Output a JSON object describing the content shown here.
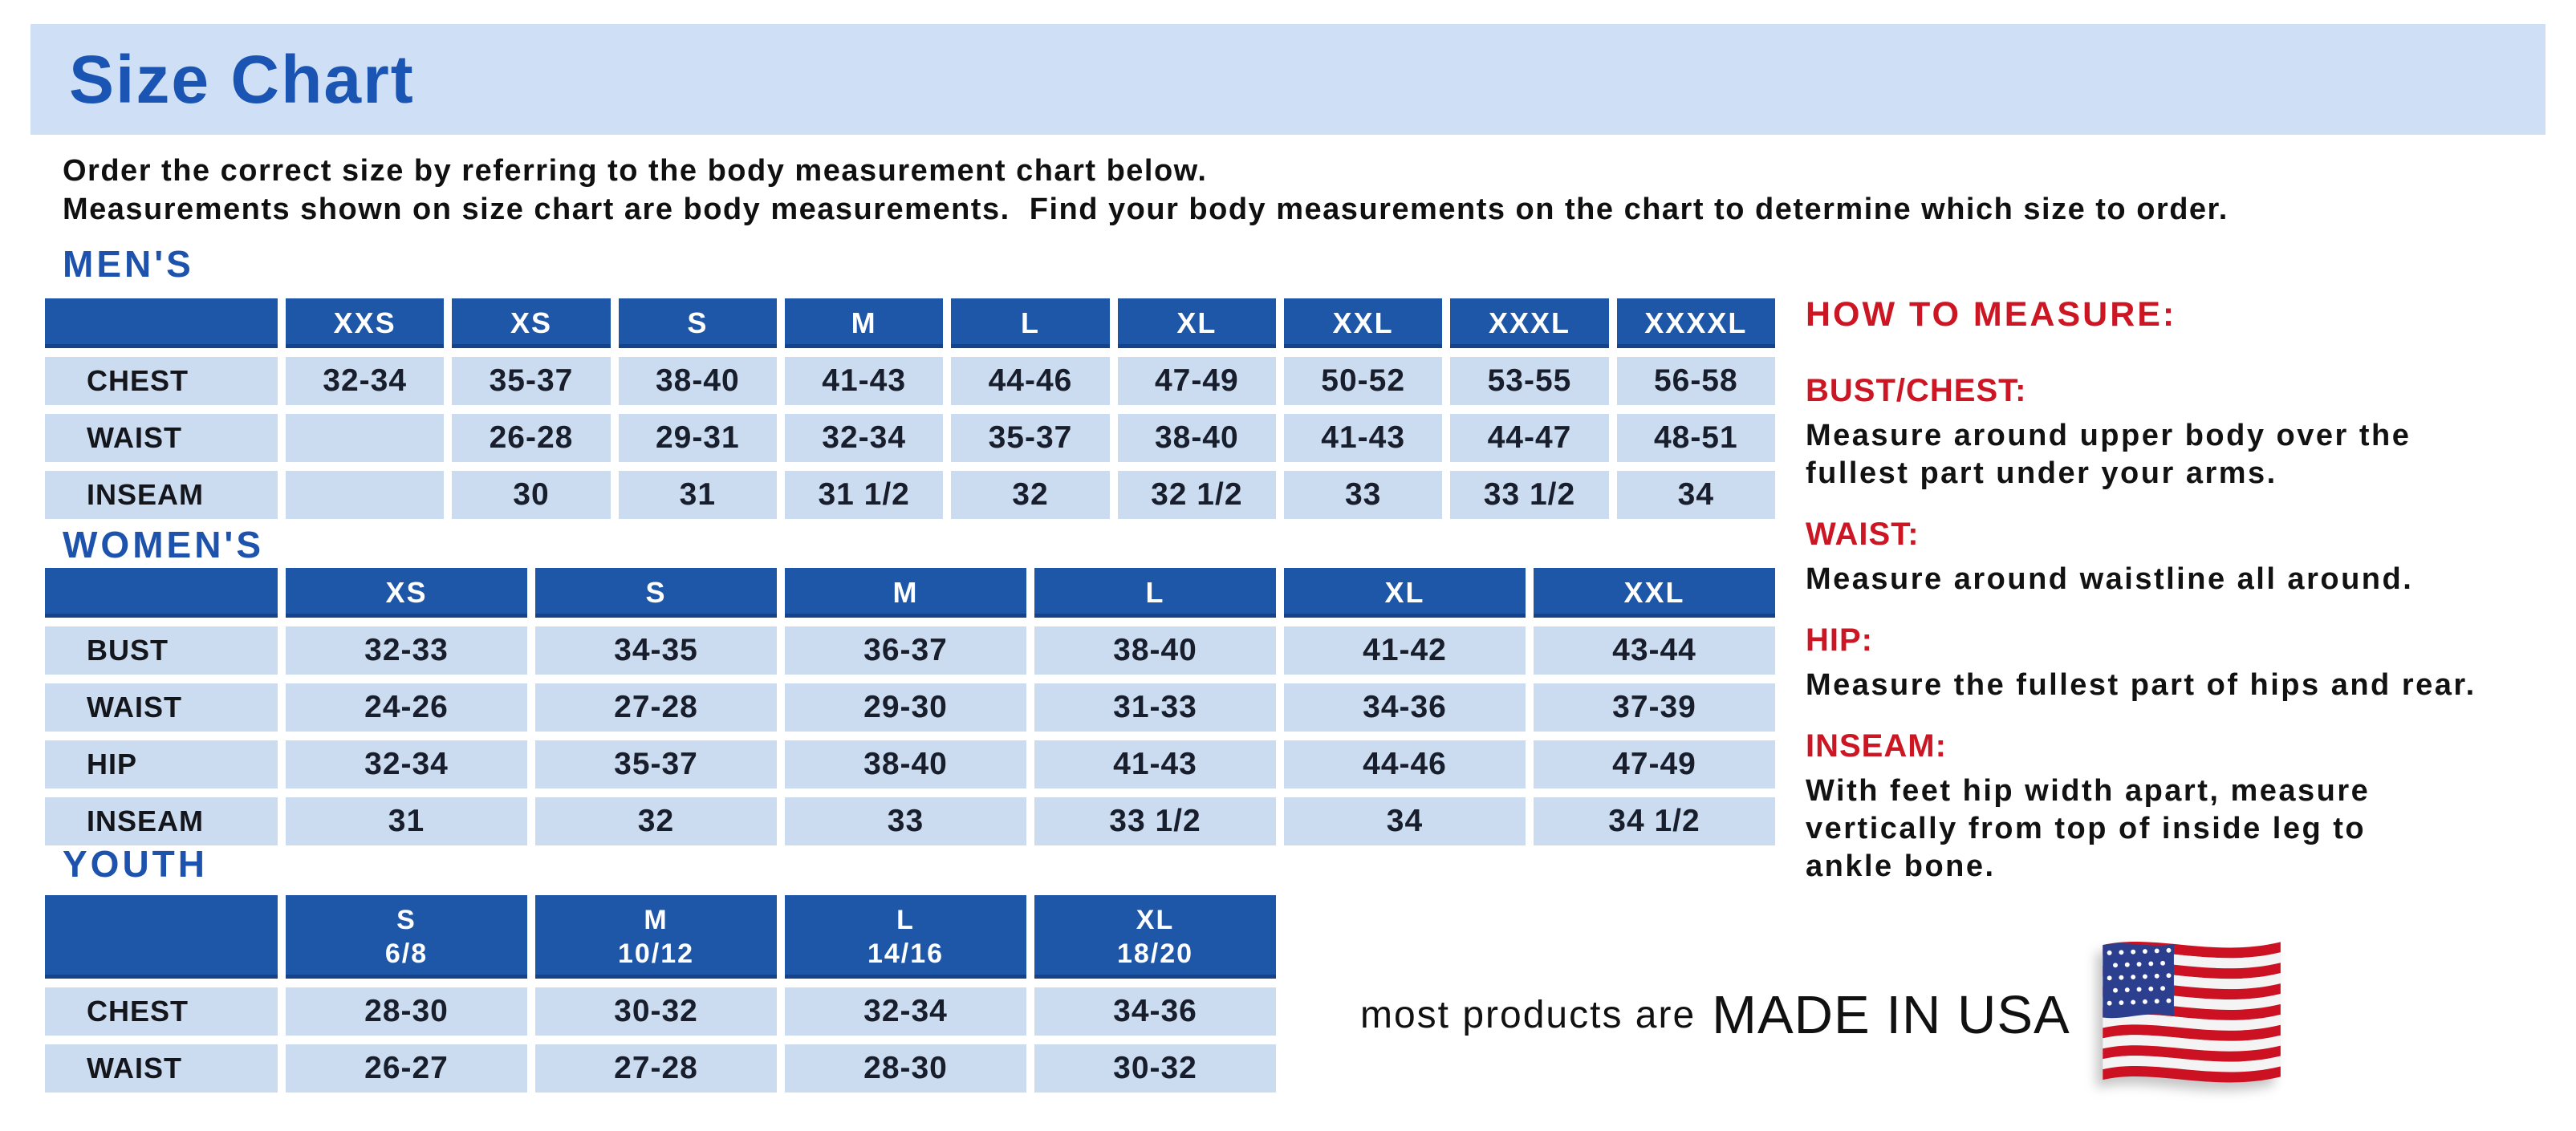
{
  "title": "Size Chart",
  "intro": {
    "line1": "Order the correct size by referring to the body measurement chart below.",
    "line2": "Measurements shown on size chart are body measurements.  Find your body measurements on the chart to determine which size to order."
  },
  "tables": {
    "mens": {
      "section_label": "MEN'S",
      "columns": [
        "XXS",
        "XS",
        "S",
        "M",
        "L",
        "XL",
        "XXL",
        "XXXL",
        "XXXXL"
      ],
      "rows": [
        {
          "label": "CHEST",
          "values": [
            "32-34",
            "35-37",
            "38-40",
            "41-43",
            "44-46",
            "47-49",
            "50-52",
            "53-55",
            "56-58"
          ]
        },
        {
          "label": "WAIST",
          "values": [
            "",
            "26-28",
            "29-31",
            "32-34",
            "35-37",
            "38-40",
            "41-43",
            "44-47",
            "48-51"
          ]
        },
        {
          "label": "INSEAM",
          "values": [
            "",
            "30",
            "31",
            "31 1/2",
            "32",
            "32 1/2",
            "33",
            "33 1/2",
            "34"
          ]
        }
      ]
    },
    "womens": {
      "section_label": "WOMEN'S",
      "columns": [
        "XS",
        "S",
        "M",
        "L",
        "XL",
        "XXL"
      ],
      "rows": [
        {
          "label": "BUST",
          "values": [
            "32-33",
            "34-35",
            "36-37",
            "38-40",
            "41-42",
            "43-44"
          ]
        },
        {
          "label": "WAIST",
          "values": [
            "24-26",
            "27-28",
            "29-30",
            "31-33",
            "34-36",
            "37-39"
          ]
        },
        {
          "label": "HIP",
          "values": [
            "32-34",
            "35-37",
            "38-40",
            "41-43",
            "44-46",
            "47-49"
          ]
        },
        {
          "label": "INSEAM",
          "values": [
            "31",
            "32",
            "33",
            "33 1/2",
            "34",
            "34 1/2"
          ]
        }
      ]
    },
    "youth": {
      "section_label": "YOUTH",
      "columns": [
        {
          "size": "S",
          "range": "6/8"
        },
        {
          "size": "M",
          "range": "10/12"
        },
        {
          "size": "L",
          "range": "14/16"
        },
        {
          "size": "XL",
          "range": "18/20"
        }
      ],
      "rows": [
        {
          "label": "CHEST",
          "values": [
            "28-30",
            "30-32",
            "32-34",
            "34-36"
          ]
        },
        {
          "label": "WAIST",
          "values": [
            "26-27",
            "27-28",
            "28-30",
            "30-32"
          ]
        }
      ]
    }
  },
  "how_to_measure": {
    "title": "HOW TO MEASURE:",
    "items": [
      {
        "heading": "BUST/CHEST:",
        "text": "Measure around upper body over the\nfullest part under your arms."
      },
      {
        "heading": "WAIST:",
        "text": "Measure around waistline all around."
      },
      {
        "heading": "HIP:",
        "text": "Measure the fullest part of hips and rear."
      },
      {
        "heading": "INSEAM:",
        "text": "With feet hip width apart, measure\nvertically from top of inside leg to\nankle bone."
      }
    ]
  },
  "footer": {
    "prefix": "most products are",
    "emphasis": "MADE IN USA",
    "flag_icon": "us-flag-icon"
  },
  "colors": {
    "header_blue": "#1e56a8",
    "cell_blue": "#cbdcf1",
    "band_blue": "#cfe0f6",
    "heading_blue": "#1d53ac",
    "title_blue": "#1b55b4",
    "accent_red": "#cc1624",
    "flag_navy": "#2b3f8e",
    "flag_red": "#cc1122"
  }
}
